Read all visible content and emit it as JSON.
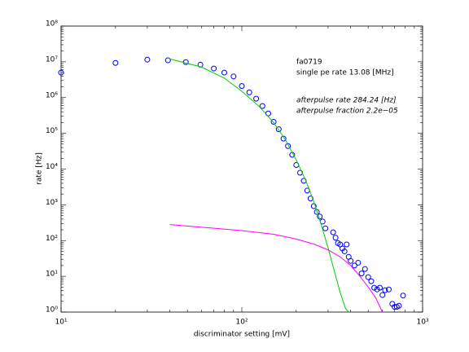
{
  "chart_data": {
    "type": "scatter",
    "xlabel": "discriminator setting [mV]",
    "ylabel": "rate [Hz]",
    "xscale": "log",
    "yscale": "log",
    "xlim": [
      10,
      1000
    ],
    "ylim": [
      1,
      100000000
    ],
    "xticks": [
      {
        "value": 10,
        "label": "10¹"
      },
      {
        "value": 100,
        "label": "10²"
      },
      {
        "value": 1000,
        "label": "10³"
      }
    ],
    "yticks": [
      {
        "value": 1,
        "label": "10⁰"
      },
      {
        "value": 10,
        "label": "10¹"
      },
      {
        "value": 100,
        "label": "10²"
      },
      {
        "value": 1000,
        "label": "10³"
      },
      {
        "value": 10000,
        "label": "10⁴"
      },
      {
        "value": 100000,
        "label": "10⁵"
      },
      {
        "value": 1000000,
        "label": "10⁶"
      },
      {
        "value": 10000000,
        "label": "10⁷"
      },
      {
        "value": 100000000,
        "label": "10⁸"
      }
    ],
    "annotations": [
      "fa0719",
      "single pe rate 13.08 [MHz]",
      "afterpulse rate 284.24 [Hz]",
      "afterpulse fraction 2.2e−05"
    ],
    "series": [
      {
        "color": "#0000ff",
        "marker": "circle",
        "x": [
          10,
          20,
          30,
          39,
          49,
          59,
          70,
          80,
          90,
          100,
          110,
          120,
          130,
          140,
          150,
          160,
          170,
          180,
          190,
          200,
          210,
          220,
          230,
          240,
          250,
          260,
          270,
          280,
          290,
          320,
          330,
          340,
          350,
          360,
          370,
          380,
          390,
          400,
          420,
          440,
          460,
          480,
          500,
          520,
          540,
          560,
          580,
          600,
          620,
          650,
          680,
          700,
          720,
          740,
          780
        ],
        "values": [
          5000000,
          9300000,
          11500000,
          11000000,
          9800000,
          8300000,
          6500000,
          5000000,
          3900000,
          2100000,
          1400000,
          930000,
          580000,
          360000,
          210000,
          130000,
          71000,
          44000,
          25000,
          13000,
          7900,
          4700,
          2500,
          1500,
          920,
          630,
          470,
          340,
          220,
          170,
          120,
          85,
          78,
          60,
          50,
          78,
          35,
          27,
          20,
          24,
          12,
          16,
          9.5,
          7.3,
          4.8,
          4.3,
          4.8,
          3.0,
          4.1,
          4.3,
          1.7,
          1.4,
          1.4,
          1.5,
          2.9
        ]
      },
      {
        "color": "#00cc00",
        "marker": "line",
        "x": [
          40,
          60,
          80,
          100,
          125,
          150,
          175,
          200,
          225,
          250,
          275,
          300,
          325,
          350,
          375,
          390
        ],
        "values": [
          12000000,
          7100000,
          3500000,
          1500000,
          560000,
          200000,
          63000,
          18000,
          5000,
          1260,
          280,
          63,
          14,
          3.5,
          1.26,
          1
        ]
      },
      {
        "color": "#ff00ff",
        "marker": "line",
        "x": [
          40,
          100,
          150,
          200,
          250,
          300,
          350,
          400,
          450,
          500,
          550,
          600
        ],
        "values": [
          280,
          190,
          150,
          110,
          80,
          55,
          35,
          20,
          10,
          5,
          2.5,
          1
        ]
      }
    ]
  }
}
